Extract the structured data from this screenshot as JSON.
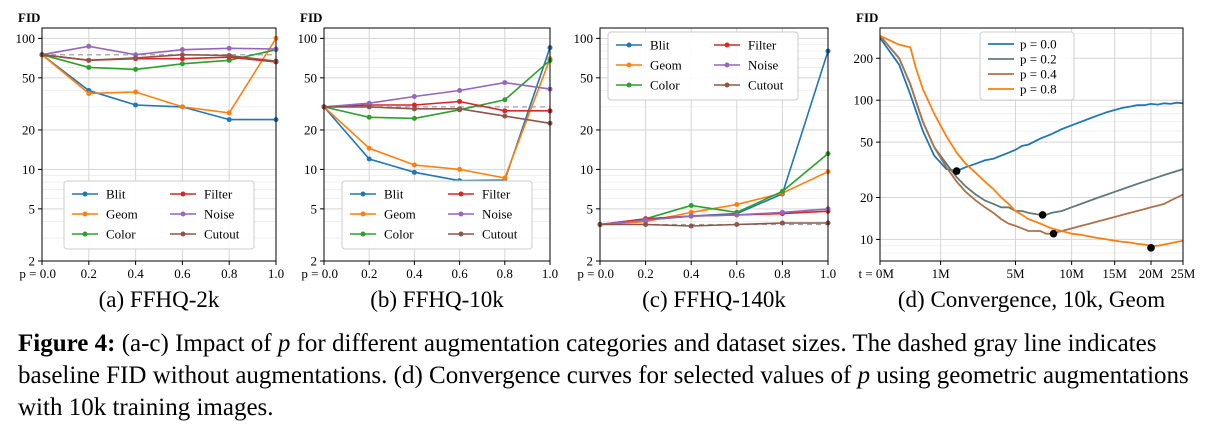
{
  "caption": {
    "label": "Figure 4:",
    "part1": " (a-c) Impact of ",
    "var1": "p",
    "part2": " for different augmentation categories and dataset sizes. The dashed gray line indicates baseline FID without augmentations. (d) Convergence curves for selected values of ",
    "var2": "p",
    "part3": " using geometric augmentations with 10k training images."
  },
  "colors": {
    "Blit": "#1f77b4",
    "Geom": "#ff7f0e",
    "Color": "#2ca02c",
    "Filter": "#d62728",
    "Noise": "#9467bd",
    "Cutout": "#8c564b",
    "p00": "#1f77b4",
    "p02": "#5f7a78",
    "p04": "#b0704a",
    "p08": "#ff7f0e",
    "baseline": "#a0a0a0"
  },
  "chart_data": [
    {
      "type": "line",
      "id": "a",
      "title": "(a) FFHQ-2k",
      "ylabel": "FID",
      "yscale": "log",
      "ylim": [
        2,
        120
      ],
      "yticks": [
        2,
        5,
        10,
        20,
        50,
        100
      ],
      "xlim": [
        0,
        1
      ],
      "x": [
        0.0,
        0.2,
        0.4,
        0.6,
        0.8,
        1.0
      ],
      "xtick_labels": [
        "p = 0.0",
        "0.2",
        "0.4",
        "0.6",
        "0.8",
        "1.0"
      ],
      "baseline": 75,
      "legend_loc": "lower-center",
      "grid": true,
      "series": [
        {
          "name": "Blit",
          "values": [
            75,
            40,
            31,
            30,
            24,
            24
          ]
        },
        {
          "name": "Geom",
          "values": [
            75,
            38,
            39,
            30,
            27,
            100
          ]
        },
        {
          "name": "Color",
          "values": [
            75,
            60,
            58,
            64,
            68,
            82
          ]
        },
        {
          "name": "Filter",
          "values": [
            75,
            68,
            70,
            70,
            72,
            66
          ]
        },
        {
          "name": "Noise",
          "values": [
            75,
            87,
            75,
            82,
            84,
            83
          ]
        },
        {
          "name": "Cutout",
          "values": [
            75,
            68,
            71,
            75,
            74,
            67
          ]
        }
      ]
    },
    {
      "type": "line",
      "id": "b",
      "title": "(b) FFHQ-10k",
      "ylabel": "FID",
      "yscale": "log",
      "ylim": [
        2,
        120
      ],
      "yticks": [
        2,
        5,
        10,
        20,
        50,
        100
      ],
      "xlim": [
        0,
        1
      ],
      "x": [
        0.0,
        0.2,
        0.4,
        0.6,
        0.8,
        1.0
      ],
      "xtick_labels": [
        "p = 0.0",
        "0.2",
        "0.4",
        "0.6",
        "0.8",
        "1.0"
      ],
      "baseline": 30,
      "legend_loc": "lower-center",
      "grid": true,
      "series": [
        {
          "name": "Blit",
          "values": [
            30,
            12,
            9.5,
            8.2,
            8.3,
            85
          ]
        },
        {
          "name": "Geom",
          "values": [
            30,
            14.5,
            10.8,
            10,
            8.6,
            70
          ]
        },
        {
          "name": "Color",
          "values": [
            30,
            25,
            24.5,
            28.5,
            34,
            68
          ]
        },
        {
          "name": "Filter",
          "values": [
            30,
            31,
            31,
            33,
            28,
            28
          ]
        },
        {
          "name": "Noise",
          "values": [
            30,
            32,
            36,
            40,
            46,
            41
          ]
        },
        {
          "name": "Cutout",
          "values": [
            30,
            30,
            29,
            29,
            25.5,
            22.5
          ]
        }
      ]
    },
    {
      "type": "line",
      "id": "c",
      "title": "(c) FFHQ-140k",
      "ylabel": "",
      "yscale": "log",
      "ylim": [
        2,
        120
      ],
      "yticks": [
        2,
        5,
        10,
        20,
        50,
        100
      ],
      "xlim": [
        0,
        1
      ],
      "x": [
        0.0,
        0.2,
        0.4,
        0.6,
        0.8,
        1.0
      ],
      "xtick_labels": [
        "p = 0.0",
        "0.2",
        "0.4",
        "0.6",
        "0.8",
        "1.0"
      ],
      "baseline": 3.8,
      "legend_loc": "upper-left",
      "grid": true,
      "series": [
        {
          "name": "Blit",
          "values": [
            3.8,
            4.1,
            4.4,
            4.6,
            6.5,
            80
          ]
        },
        {
          "name": "Geom",
          "values": [
            3.8,
            4.0,
            4.7,
            5.4,
            6.6,
            9.6
          ]
        },
        {
          "name": "Color",
          "values": [
            3.8,
            4.2,
            5.3,
            4.7,
            6.8,
            13.2
          ]
        },
        {
          "name": "Filter",
          "values": [
            3.8,
            4.2,
            4.4,
            4.5,
            4.6,
            4.8
          ]
        },
        {
          "name": "Noise",
          "values": [
            3.8,
            4.1,
            4.4,
            4.5,
            4.7,
            5.0
          ]
        },
        {
          "name": "Cutout",
          "values": [
            3.8,
            3.8,
            3.7,
            3.8,
            3.9,
            3.9
          ]
        }
      ]
    },
    {
      "type": "line",
      "id": "d",
      "title": "(d) Convergence, 10k, Geom",
      "ylabel": "FID",
      "yscale": "log",
      "ylim": [
        7,
        330
      ],
      "yticks": [
        10,
        20,
        50,
        100,
        200
      ],
      "xscale": "sqrt",
      "xlim": [
        0,
        25
      ],
      "xticks": [
        0,
        1,
        5,
        10,
        15,
        20,
        25
      ],
      "xtick_labels": [
        "t = 0M",
        "1M",
        "5M",
        "10M",
        "15M",
        "20M",
        "25M"
      ],
      "legend_loc": "upper-center",
      "grid": true,
      "series": [
        {
          "name": "p = 0.0",
          "x": [
            0,
            0.1,
            0.25,
            0.5,
            0.8,
            1.2,
            1.6,
            2.0,
            2.5,
            3,
            3.5,
            4,
            4.5,
            5,
            5.5,
            6,
            7,
            8,
            9,
            10,
            11,
            12,
            13,
            14,
            15,
            16,
            17,
            18,
            19,
            20,
            21,
            22,
            23,
            24,
            25
          ],
          "values": [
            280,
            180,
            110,
            60,
            40,
            32,
            31,
            33,
            35,
            37,
            38,
            40,
            42,
            44,
            47,
            48,
            53,
            57,
            62,
            66,
            70,
            74,
            78,
            82,
            85,
            88,
            90,
            92,
            92,
            94,
            93,
            95,
            94,
            96,
            95
          ]
        },
        {
          "name": "p = 0.2",
          "x": [
            0,
            0.1,
            0.25,
            0.5,
            0.8,
            1.2,
            1.6,
            2.0,
            2.5,
            3,
            3.5,
            4,
            4.5,
            5,
            5.5,
            6,
            7,
            7.5,
            8,
            9,
            10,
            11,
            12,
            13,
            14,
            15,
            16,
            17,
            18,
            19,
            20,
            21,
            22,
            23,
            24,
            25
          ],
          "values": [
            290,
            200,
            130,
            70,
            46,
            35,
            28,
            24,
            21,
            19,
            18,
            17,
            17,
            16,
            16,
            15.5,
            15,
            15,
            15.5,
            16,
            17,
            18,
            19,
            20,
            21,
            22,
            23,
            24,
            25,
            26,
            27,
            28,
            29,
            30,
            31,
            32
          ]
        },
        {
          "name": "p = 0.4",
          "x": [
            0,
            0.1,
            0.25,
            0.5,
            0.8,
            1.2,
            1.6,
            2.0,
            2.5,
            3,
            3.5,
            4,
            4.5,
            5,
            5.5,
            6,
            6.5,
            7,
            7.5,
            8,
            9,
            10,
            11,
            12,
            13,
            14,
            15,
            16,
            17,
            18,
            19,
            20,
            21,
            22,
            23,
            24,
            25
          ],
          "values": [
            290,
            200,
            130,
            70,
            46,
            33,
            26,
            22,
            19,
            17,
            15.5,
            14,
            13,
            12.5,
            12,
            11.5,
            11.5,
            11.5,
            11,
            11,
            11.5,
            12,
            12.5,
            13,
            13.5,
            14,
            14.5,
            15,
            15.5,
            16,
            16.5,
            17,
            17.5,
            18,
            19,
            20,
            21
          ]
        },
        {
          "name": "p = 0.8",
          "x": [
            0,
            0.1,
            0.25,
            0.35,
            0.5,
            0.8,
            1.2,
            1.6,
            2.0,
            2.5,
            3,
            3.5,
            4,
            4.5,
            5,
            5.5,
            6,
            7,
            8,
            9,
            10,
            11,
            12,
            13,
            14,
            15,
            16,
            17,
            18,
            19,
            20,
            21,
            22,
            23,
            24,
            25
          ],
          "values": [
            290,
            250,
            240,
            170,
            120,
            80,
            55,
            42,
            35,
            30,
            26,
            23,
            20,
            18,
            16,
            15,
            14,
            13,
            12,
            11.5,
            11,
            10.8,
            10.5,
            10.2,
            10,
            9.8,
            9.6,
            9.5,
            9.3,
            9.2,
            9.0,
            9.0,
            9.2,
            9.4,
            9.6,
            9.8
          ]
        }
      ],
      "markers": [
        {
          "series": "p = 0.0",
          "x": 1.6,
          "y": 31
        },
        {
          "series": "p = 0.2",
          "x": 7.2,
          "y": 15
        },
        {
          "series": "p = 0.4",
          "x": 8.2,
          "y": 11
        },
        {
          "series": "p = 0.8",
          "x": 20,
          "y": 8.7
        }
      ]
    }
  ]
}
